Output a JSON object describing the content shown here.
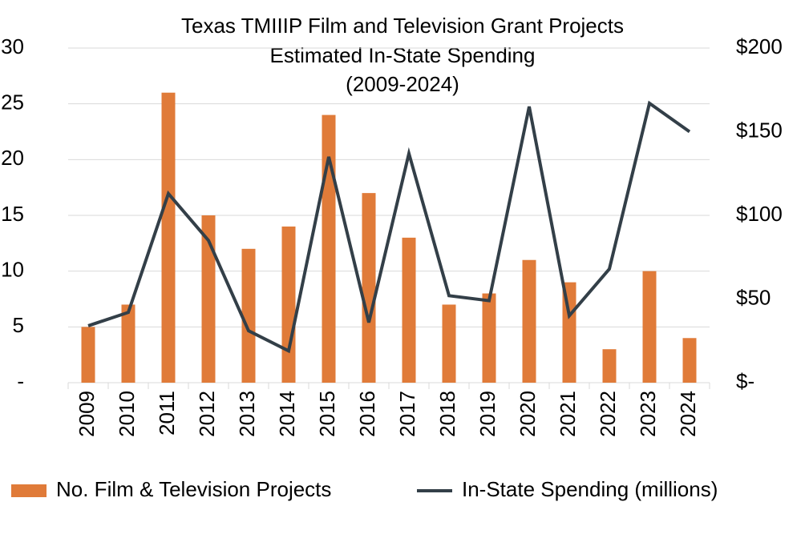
{
  "chart_data": {
    "type": "bar",
    "title": [
      "Texas TMIIIP Film and Television Grant Projects",
      "Estimated In-State Spending",
      "(2009-2024)"
    ],
    "categories": [
      "2009",
      "2010",
      "2011",
      "2012",
      "2013",
      "2014",
      "2015",
      "2016",
      "2017",
      "2018",
      "2019",
      "2020",
      "2021",
      "2022",
      "2023",
      "2024"
    ],
    "series": [
      {
        "name": "No. Film & Television Projects",
        "color": "#e07b39",
        "type": "bar",
        "values": [
          5,
          7,
          26,
          15,
          12,
          14,
          24,
          17,
          13,
          7,
          8,
          11,
          9,
          3,
          10,
          4
        ]
      },
      {
        "name": "In-State Spending (millions)",
        "color": "#333f48",
        "type": "line",
        "axis": "y2",
        "values": [
          34,
          42,
          113,
          85,
          31,
          19,
          135,
          36,
          137,
          52,
          49,
          165,
          40,
          68,
          167,
          150
        ]
      }
    ],
    "ylim": [
      0,
      30
    ],
    "yticks": [
      {
        "value": 0,
        "label": "-"
      },
      5,
      10,
      15,
      20,
      25,
      30
    ],
    "y2lim": [
      0,
      200
    ],
    "y2ticks": [
      {
        "value": 0,
        "label": "$-"
      },
      {
        "value": 50,
        "label": "$50"
      },
      {
        "value": 100,
        "label": "$100"
      },
      {
        "value": 150,
        "label": "$150"
      },
      {
        "value": 200,
        "label": "$200"
      }
    ],
    "grid": true,
    "legend": "bottom"
  }
}
